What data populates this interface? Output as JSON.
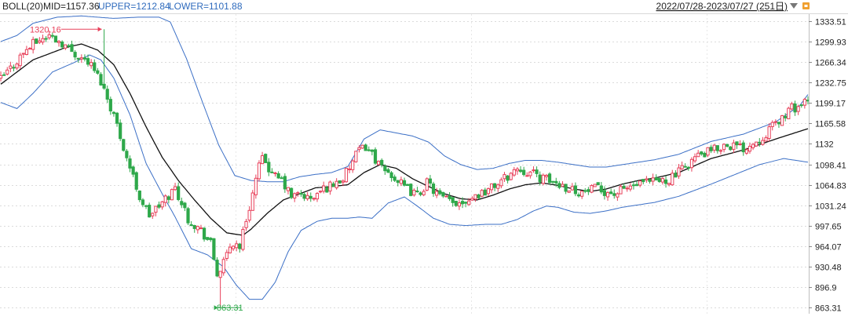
{
  "header": {
    "indicator": "BOLL(20)",
    "mid": "MID=1157.36",
    "upper": "UPPER=1212.84",
    "lower": "LOWER=1101.88",
    "date_range": "2022/07/28-2023/07/27 (251日)",
    "colors": {
      "mid": "#222222",
      "upper": "#2f6bbd",
      "lower": "#2f6bbd"
    }
  },
  "chart_data": {
    "type": "candlestick",
    "y_ticks": [
      "1333.51",
      "1299.93",
      "1266.34",
      "1232.75",
      "1199.17",
      "1165.58",
      "1132",
      "1098.41",
      "1064.83",
      "1031.24",
      "997.65",
      "964.07",
      "930.48",
      "896.9",
      "863.31"
    ],
    "ylim": [
      853.31,
      1345.0
    ],
    "max_label": "1320.16",
    "min_label": "863.31",
    "colors": {
      "up": "#e8405a",
      "down": "#2ea84a",
      "mid": "#111111",
      "band": "#3b6fc6",
      "max_label": "#e8405a",
      "min_label": "#2ea84a"
    },
    "anchors_close": [
      [
        0,
        1238
      ],
      [
        8,
        1262
      ],
      [
        15,
        1285
      ],
      [
        22,
        1300
      ],
      [
        30,
        1310
      ],
      [
        38,
        1298
      ],
      [
        45,
        1282
      ],
      [
        55,
        1265
      ],
      [
        62,
        1235
      ],
      [
        70,
        1180
      ],
      [
        78,
        1110
      ],
      [
        86,
        1045
      ],
      [
        92,
        1015
      ],
      [
        100,
        1035
      ],
      [
        108,
        1060
      ],
      [
        116,
        1010
      ],
      [
        124,
        990
      ],
      [
        130,
        968
      ],
      [
        134,
        918
      ],
      [
        138,
        935
      ],
      [
        143,
        970
      ],
      [
        148,
        965
      ],
      [
        155,
        1040
      ],
      [
        160,
        1095
      ],
      [
        163,
        1110
      ],
      [
        168,
        1080
      ],
      [
        174,
        1072
      ],
      [
        180,
        1045
      ],
      [
        186,
        1050
      ],
      [
        192,
        1040
      ],
      [
        200,
        1058
      ],
      [
        207,
        1068
      ],
      [
        212,
        1075
      ],
      [
        217,
        1098
      ],
      [
        221,
        1118
      ],
      [
        226,
        1128
      ],
      [
        231,
        1112
      ],
      [
        236,
        1090
      ],
      [
        242,
        1082
      ],
      [
        250,
        1060
      ],
      [
        258,
        1048
      ],
      [
        264,
        1068
      ],
      [
        272,
        1045
      ],
      [
        280,
        1035
      ],
      [
        288,
        1040
      ],
      [
        296,
        1050
      ],
      [
        304,
        1060
      ],
      [
        312,
        1075
      ],
      [
        320,
        1092
      ],
      [
        328,
        1085
      ],
      [
        336,
        1075
      ],
      [
        344,
        1068
      ],
      [
        352,
        1060
      ],
      [
        360,
        1052
      ],
      [
        368,
        1058
      ],
      [
        374,
        1055
      ],
      [
        380,
        1050
      ],
      [
        390,
        1062
      ],
      [
        398,
        1066
      ],
      [
        405,
        1070
      ],
      [
        412,
        1072
      ],
      [
        420,
        1085
      ],
      [
        430,
        1110
      ],
      [
        440,
        1120
      ],
      [
        450,
        1132
      ],
      [
        460,
        1125
      ],
      [
        470,
        1140
      ],
      [
        480,
        1165
      ],
      [
        490,
        1190
      ],
      [
        500,
        1200
      ]
    ],
    "anchors_mid": [
      [
        0,
        1230
      ],
      [
        20,
        1270
      ],
      [
        40,
        1290
      ],
      [
        50,
        1296
      ],
      [
        60,
        1286
      ],
      [
        70,
        1262
      ],
      [
        80,
        1215
      ],
      [
        90,
        1160
      ],
      [
        100,
        1110
      ],
      [
        110,
        1072
      ],
      [
        120,
        1040
      ],
      [
        130,
        1010
      ],
      [
        140,
        986
      ],
      [
        150,
        982
      ],
      [
        155,
        992
      ],
      [
        165,
        1018
      ],
      [
        175,
        1040
      ],
      [
        185,
        1050
      ],
      [
        195,
        1060
      ],
      [
        205,
        1062
      ],
      [
        215,
        1065
      ],
      [
        225,
        1085
      ],
      [
        235,
        1098
      ],
      [
        245,
        1092
      ],
      [
        255,
        1075
      ],
      [
        265,
        1062
      ],
      [
        275,
        1050
      ],
      [
        285,
        1042
      ],
      [
        295,
        1040
      ],
      [
        305,
        1048
      ],
      [
        315,
        1058
      ],
      [
        325,
        1065
      ],
      [
        335,
        1068
      ],
      [
        345,
        1064
      ],
      [
        355,
        1058
      ],
      [
        365,
        1054
      ],
      [
        375,
        1058
      ],
      [
        385,
        1066
      ],
      [
        395,
        1072
      ],
      [
        405,
        1076
      ],
      [
        420,
        1085
      ],
      [
        440,
        1108
      ],
      [
        460,
        1122
      ],
      [
        480,
        1140
      ],
      [
        500,
        1157
      ]
    ],
    "anchors_upper": [
      [
        0,
        1300
      ],
      [
        10,
        1310
      ],
      [
        20,
        1330
      ],
      [
        35,
        1340
      ],
      [
        50,
        1342
      ],
      [
        60,
        1340
      ],
      [
        70,
        1338
      ],
      [
        85,
        1340
      ],
      [
        98,
        1340
      ],
      [
        105,
        1332
      ],
      [
        115,
        1272
      ],
      [
        125,
        1200
      ],
      [
        135,
        1130
      ],
      [
        145,
        1080
      ],
      [
        155,
        1072
      ],
      [
        165,
        1070
      ],
      [
        175,
        1070
      ],
      [
        185,
        1078
      ],
      [
        195,
        1082
      ],
      [
        205,
        1085
      ],
      [
        215,
        1095
      ],
      [
        225,
        1140
      ],
      [
        235,
        1155
      ],
      [
        245,
        1150
      ],
      [
        255,
        1145
      ],
      [
        265,
        1135
      ],
      [
        275,
        1112
      ],
      [
        285,
        1098
      ],
      [
        295,
        1090
      ],
      [
        305,
        1092
      ],
      [
        315,
        1100
      ],
      [
        325,
        1105
      ],
      [
        335,
        1105
      ],
      [
        345,
        1102
      ],
      [
        355,
        1098
      ],
      [
        365,
        1094
      ],
      [
        375,
        1094
      ],
      [
        385,
        1098
      ],
      [
        395,
        1102
      ],
      [
        405,
        1106
      ],
      [
        420,
        1115
      ],
      [
        440,
        1136
      ],
      [
        460,
        1148
      ],
      [
        480,
        1168
      ],
      [
        495,
        1195
      ],
      [
        500,
        1213
      ]
    ],
    "anchors_lower": [
      [
        0,
        1200
      ],
      [
        10,
        1190
      ],
      [
        20,
        1215
      ],
      [
        32,
        1250
      ],
      [
        45,
        1265
      ],
      [
        55,
        1278
      ],
      [
        62,
        1270
      ],
      [
        70,
        1240
      ],
      [
        80,
        1180
      ],
      [
        90,
        1100
      ],
      [
        100,
        1050
      ],
      [
        108,
        1012
      ],
      [
        118,
        960
      ],
      [
        128,
        950
      ],
      [
        138,
        930
      ],
      [
        146,
        900
      ],
      [
        154,
        877
      ],
      [
        162,
        877
      ],
      [
        170,
        905
      ],
      [
        178,
        955
      ],
      [
        186,
        990
      ],
      [
        196,
        1005
      ],
      [
        205,
        1010
      ],
      [
        215,
        1010
      ],
      [
        222,
        1012
      ],
      [
        230,
        1010
      ],
      [
        240,
        1035
      ],
      [
        250,
        1045
      ],
      [
        258,
        1030
      ],
      [
        268,
        1010
      ],
      [
        278,
        1000
      ],
      [
        288,
        998
      ],
      [
        300,
        1000
      ],
      [
        310,
        1000
      ],
      [
        320,
        1008
      ],
      [
        330,
        1022
      ],
      [
        338,
        1030
      ],
      [
        345,
        1028
      ],
      [
        355,
        1020
      ],
      [
        365,
        1018
      ],
      [
        375,
        1022
      ],
      [
        385,
        1028
      ],
      [
        395,
        1032
      ],
      [
        405,
        1036
      ],
      [
        420,
        1046
      ],
      [
        440,
        1066
      ],
      [
        455,
        1082
      ],
      [
        470,
        1098
      ],
      [
        485,
        1108
      ],
      [
        495,
        1104
      ],
      [
        500,
        1102
      ]
    ]
  }
}
